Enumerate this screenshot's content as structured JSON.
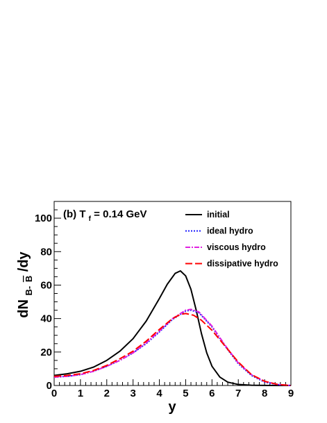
{
  "chart_data": {
    "type": "line",
    "annotation": {
      "prefix": "(b) T",
      "sub": "f",
      "suffix": " = 0.14 GeV"
    },
    "xlabel": "y",
    "ylabel": {
      "main": "dN",
      "sub_pre": "B-",
      "sub_bar": "B",
      "tail": "/dy"
    },
    "xlim": [
      0,
      9
    ],
    "ylim": [
      0,
      110
    ],
    "x_ticks": [
      0,
      1,
      2,
      3,
      4,
      5,
      6,
      7,
      8,
      9
    ],
    "y_ticks": [
      0,
      20,
      40,
      60,
      80,
      100
    ],
    "legend_position": "top-right",
    "series": [
      {
        "name": "initial",
        "color": "#000000",
        "dash": "none",
        "x": [
          0,
          0.5,
          1,
          1.5,
          2,
          2.5,
          3,
          3.5,
          4,
          4.3,
          4.6,
          4.8,
          5.0,
          5.2,
          5.4,
          5.6,
          5.8,
          6.0,
          6.3,
          6.6,
          7.0,
          7.5,
          8.0,
          8.5,
          9.0
        ],
        "y": [
          6,
          7,
          8.5,
          11,
          15,
          20.5,
          28,
          38.5,
          52,
          60.5,
          67,
          68.5,
          65.5,
          57.5,
          45,
          31,
          19.5,
          11.5,
          5,
          2,
          0.6,
          0.15,
          0.05,
          0,
          0
        ]
      },
      {
        "name": "ideal hydro",
        "color": "#1a1aff",
        "dash": "2,2",
        "x": [
          0,
          0.5,
          1,
          1.5,
          2,
          2.5,
          3,
          3.5,
          4,
          4.5,
          5.0,
          5.2,
          5.5,
          6.0,
          6.5,
          7.0,
          7.5,
          8.0,
          8.5,
          9.0
        ],
        "y": [
          5,
          5.5,
          6.5,
          8.5,
          11.5,
          15,
          19.5,
          25,
          32,
          39.5,
          44.5,
          45,
          43.5,
          35,
          23.5,
          13,
          6,
          2,
          0.5,
          0
        ]
      },
      {
        "name": "viscous hydro",
        "color": "#e020e0",
        "dash": "7,2,2,2",
        "x": [
          0,
          0.5,
          1,
          1.5,
          2,
          2.5,
          3,
          3.5,
          4,
          4.5,
          5.0,
          5.2,
          5.5,
          6.0,
          6.5,
          7.0,
          7.5,
          8.0,
          8.5,
          9.0
        ],
        "y": [
          5,
          5.5,
          6.5,
          8.5,
          11.5,
          15,
          19.5,
          25.5,
          32.5,
          40,
          45,
          45.5,
          44,
          35.5,
          24,
          13.5,
          6.5,
          2.5,
          0.6,
          0
        ]
      },
      {
        "name": "dissipative hydro",
        "color": "#ff0000",
        "dash": "10,4",
        "x": [
          0,
          0.5,
          1,
          1.5,
          2,
          2.5,
          3,
          3.5,
          4,
          4.5,
          4.8,
          5.0,
          5.3,
          5.6,
          6.0,
          6.5,
          7.0,
          7.5,
          8.0,
          8.5,
          9.0
        ],
        "y": [
          5.5,
          6,
          7,
          9,
          12,
          16,
          20.5,
          26.5,
          33.5,
          40,
          42.5,
          43,
          42,
          39,
          33,
          23.5,
          14,
          6.5,
          2.5,
          0.6,
          0
        ]
      }
    ]
  }
}
